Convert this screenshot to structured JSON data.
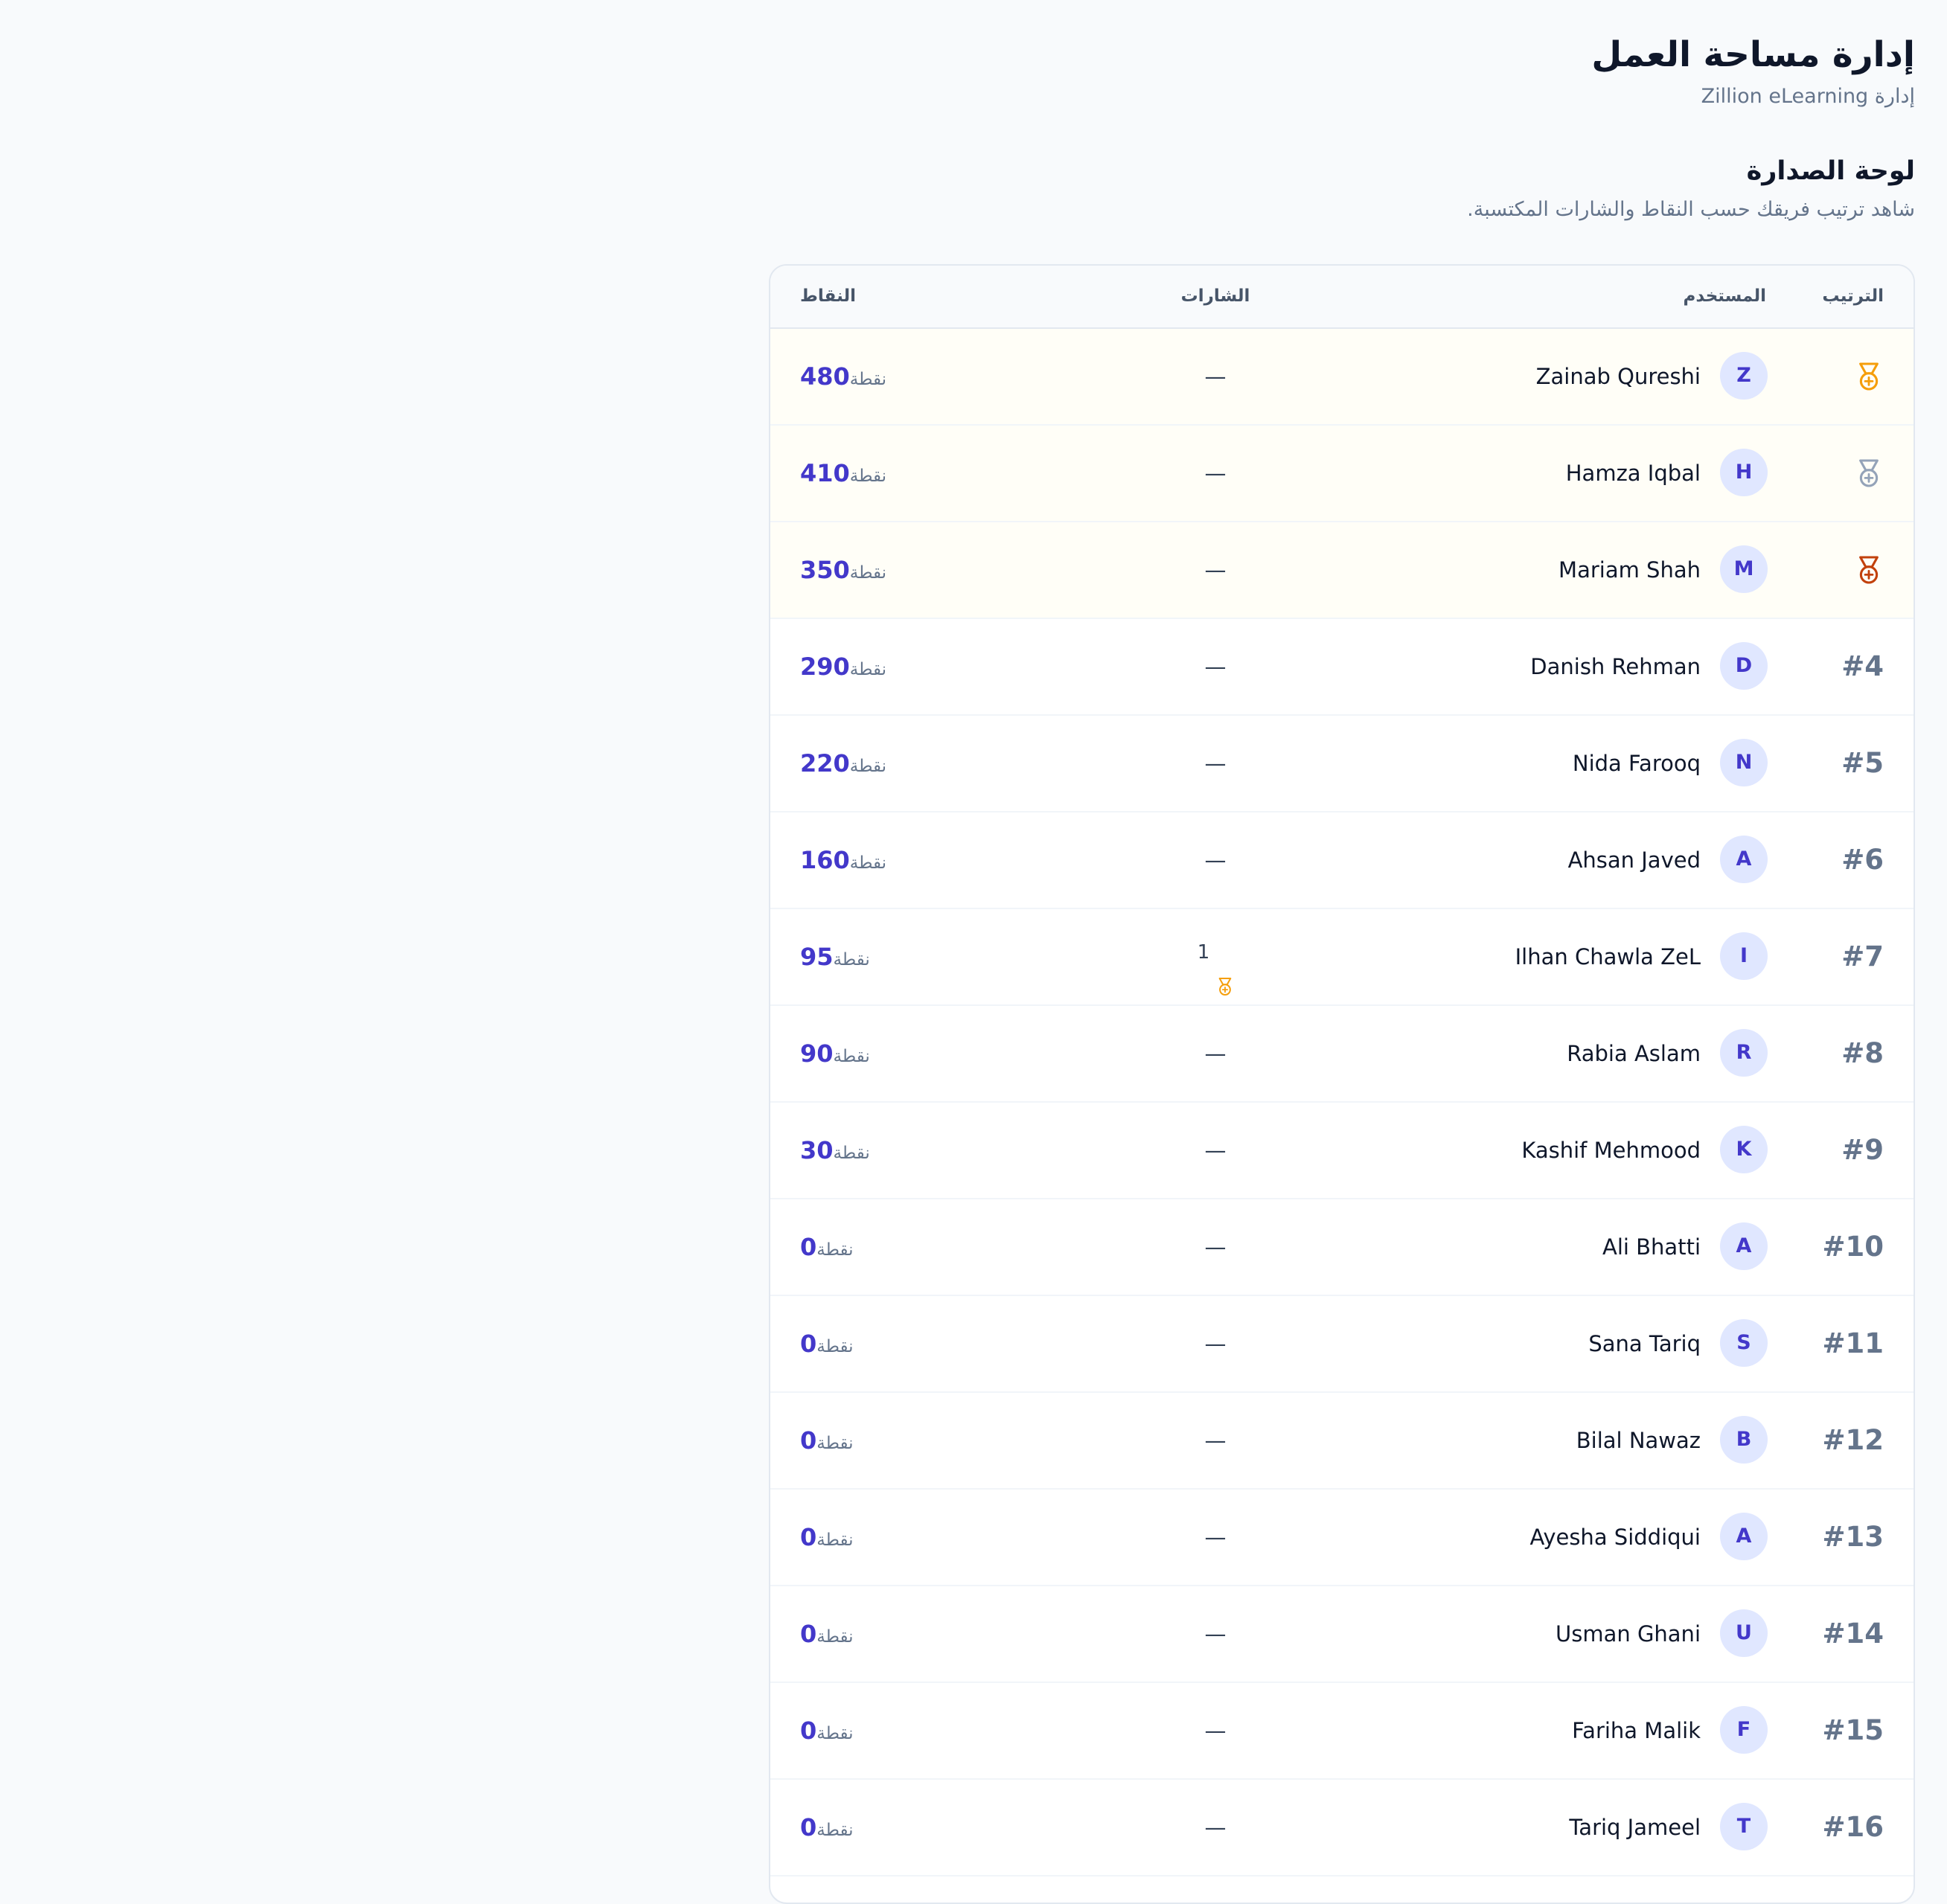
{
  "header": {
    "title": "إدارة مساحة العمل",
    "subtitle": "إدارة Zillion eLearning"
  },
  "leaderboard": {
    "title": "لوحة الصدارة",
    "description": "شاهد ترتيب فريقك حسب النقاط والشارات المكتسبة.",
    "columns": {
      "rank": "الترتيب",
      "user": "المستخدم",
      "badges": "الشارات",
      "points": "النقاط"
    },
    "points_unit": "نقطة",
    "medal_colors": {
      "gold": "#f59e0b",
      "silver": "#94a3b8",
      "bronze": "#c2410c"
    },
    "accent_color": "#4338ca",
    "rows": [
      {
        "rank": "",
        "medal": "gold",
        "initial": "Z",
        "name": "Zainab Qureshi",
        "badges": "—",
        "badge_count": "",
        "points": "480"
      },
      {
        "rank": "",
        "medal": "silver",
        "initial": "H",
        "name": "Hamza Iqbal",
        "badges": "—",
        "badge_count": "",
        "points": "410"
      },
      {
        "rank": "",
        "medal": "bronze",
        "initial": "M",
        "name": "Mariam Shah",
        "badges": "—",
        "badge_count": "",
        "points": "350"
      },
      {
        "rank": "#4",
        "medal": "",
        "initial": "D",
        "name": "Danish Rehman",
        "badges": "—",
        "badge_count": "",
        "points": "290"
      },
      {
        "rank": "#5",
        "medal": "",
        "initial": "N",
        "name": "Nida Farooq",
        "badges": "—",
        "badge_count": "",
        "points": "220"
      },
      {
        "rank": "#6",
        "medal": "",
        "initial": "A",
        "name": "Ahsan Javed",
        "badges": "—",
        "badge_count": "",
        "points": "160"
      },
      {
        "rank": "#7",
        "medal": "",
        "initial": "I",
        "name": "Ilhan Chawla ZeL",
        "badges": "",
        "badge_count": "1",
        "points": "95"
      },
      {
        "rank": "#8",
        "medal": "",
        "initial": "R",
        "name": "Rabia Aslam",
        "badges": "—",
        "badge_count": "",
        "points": "90"
      },
      {
        "rank": "#9",
        "medal": "",
        "initial": "K",
        "name": "Kashif Mehmood",
        "badges": "—",
        "badge_count": "",
        "points": "30"
      },
      {
        "rank": "#10",
        "medal": "",
        "initial": "A",
        "name": "Ali Bhatti",
        "badges": "—",
        "badge_count": "",
        "points": "0"
      },
      {
        "rank": "#11",
        "medal": "",
        "initial": "S",
        "name": "Sana Tariq",
        "badges": "—",
        "badge_count": "",
        "points": "0"
      },
      {
        "rank": "#12",
        "medal": "",
        "initial": "B",
        "name": "Bilal Nawaz",
        "badges": "—",
        "badge_count": "",
        "points": "0"
      },
      {
        "rank": "#13",
        "medal": "",
        "initial": "A",
        "name": "Ayesha Siddiqui",
        "badges": "—",
        "badge_count": "",
        "points": "0"
      },
      {
        "rank": "#14",
        "medal": "",
        "initial": "U",
        "name": "Usman Ghani",
        "badges": "—",
        "badge_count": "",
        "points": "0"
      },
      {
        "rank": "#15",
        "medal": "",
        "initial": "F",
        "name": "Fariha Malik",
        "badges": "—",
        "badge_count": "",
        "points": "0"
      },
      {
        "rank": "#16",
        "medal": "",
        "initial": "T",
        "name": "Tariq Jameel",
        "badges": "—",
        "badge_count": "",
        "points": "0"
      }
    ]
  }
}
